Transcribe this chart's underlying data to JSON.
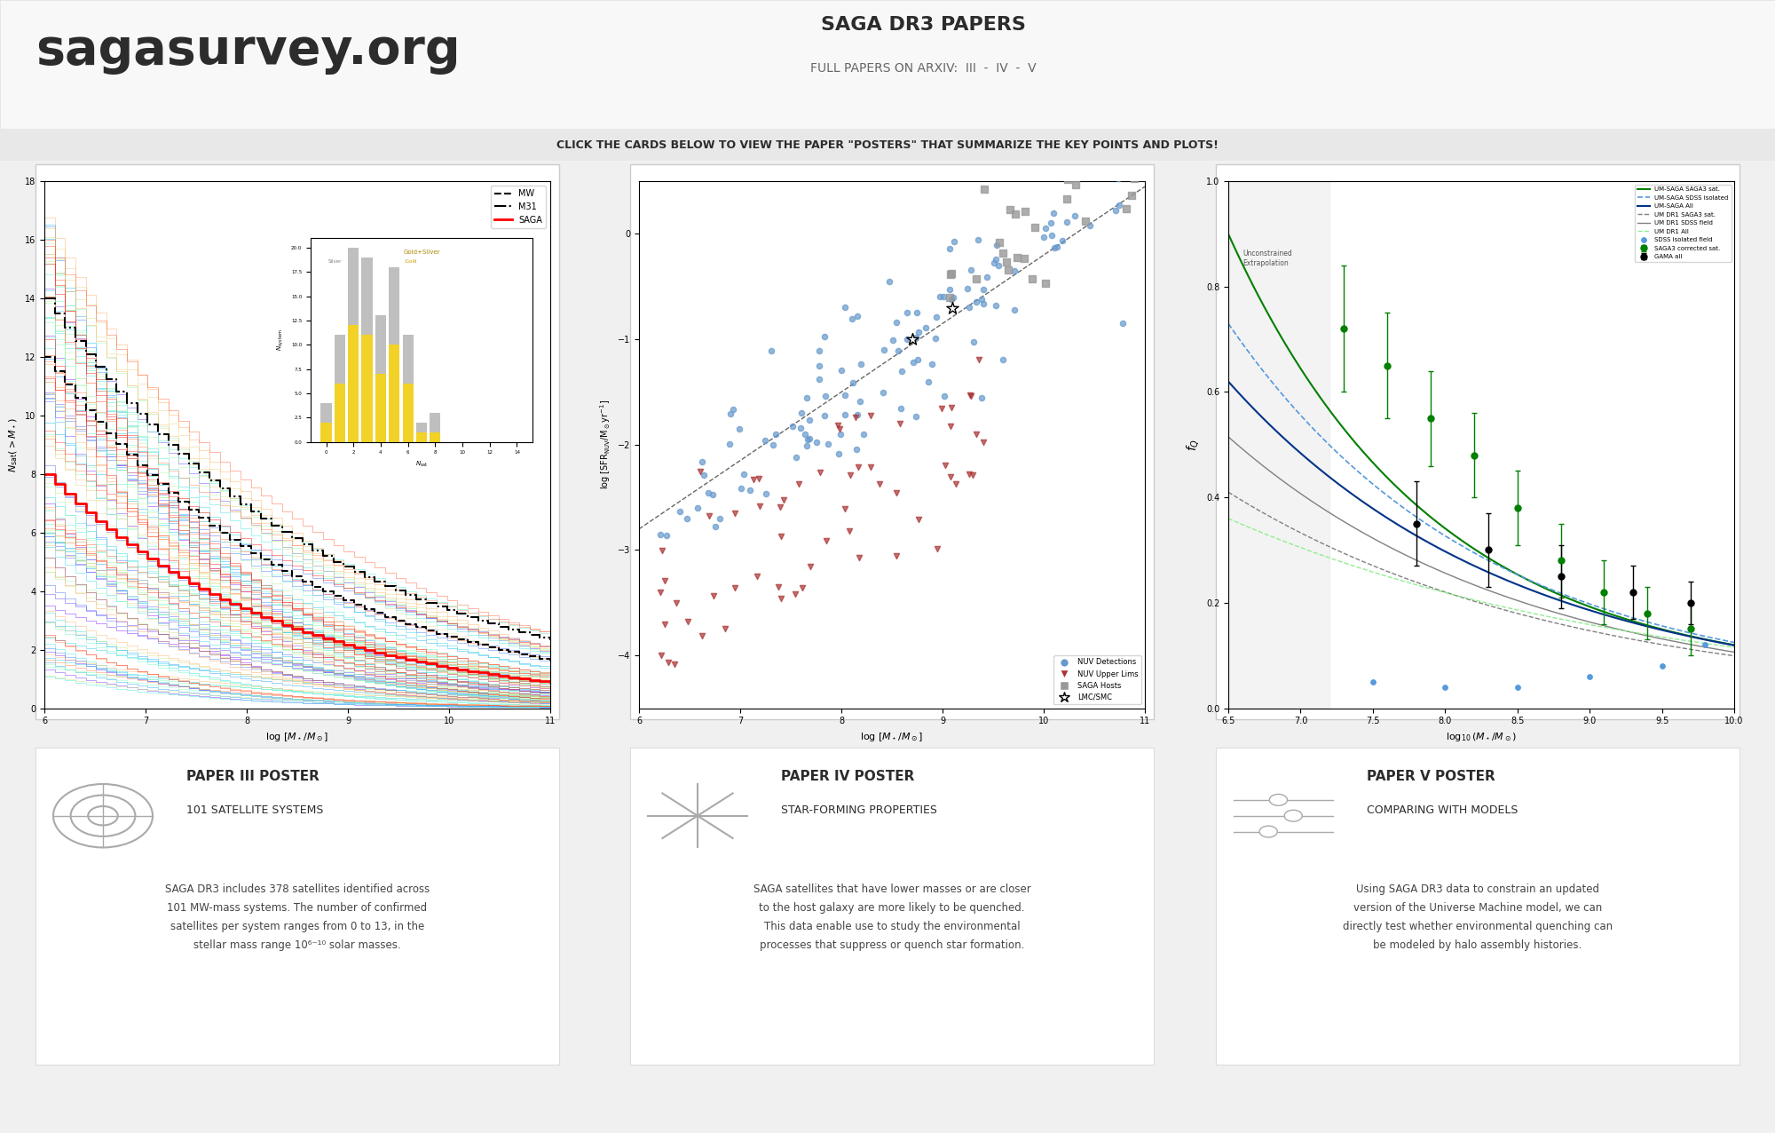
{
  "bg_color": "#f0f0f0",
  "title_saga": "sagasurvey.org",
  "title_papers": "SAGA DR3 PAPERS",
  "subtitle_arxiv": "FULL PAPERS ON ARXIV:  III  -  IV  -  V",
  "click_text": "CLICK THE CARDS BELOW TO VIEW THE PAPER \"POSTERS\" THAT SUMMARIZE THE KEY POINTS AND PLOTS!",
  "paper3_title": "PAPER III POSTER",
  "paper3_sub": "101 SATELLITE SYSTEMS",
  "paper3_desc": "SAGA DR3 includes 378 satellites identified across\n101 MW-mass systems. The number of confirmed\nsatellites per system ranges from 0 to 13, in the\nstellar mass range 10⁶⁻¹⁰ solar masses.",
  "paper4_title": "PAPER IV POSTER",
  "paper4_sub": "STAR-FORMING PROPERTIES",
  "paper4_desc": "SAGA satellites that have lower masses or are closer\nto the host galaxy are more likely to be quenched.\nThis data enable use to study the environmental\nprocesses that suppress or quench star formation.",
  "paper5_title": "PAPER V POSTER",
  "paper5_sub": "COMPARING WITH MODELS",
  "paper5_desc": "Using SAGA DR3 data to constrain an updated\nversion of the Universe Machine model, we can\ndirectly test whether environmental quenching can\nbe modeled by halo assembly histories.",
  "card_bg": "#ffffff",
  "card_border": "#dddddd",
  "header_bg": "#f5f5f5",
  "text_dark": "#2c2c2c",
  "text_mid": "#444444",
  "text_light": "#666666",
  "accent_blue": "#4a90d9",
  "accent_underline": "#888888"
}
